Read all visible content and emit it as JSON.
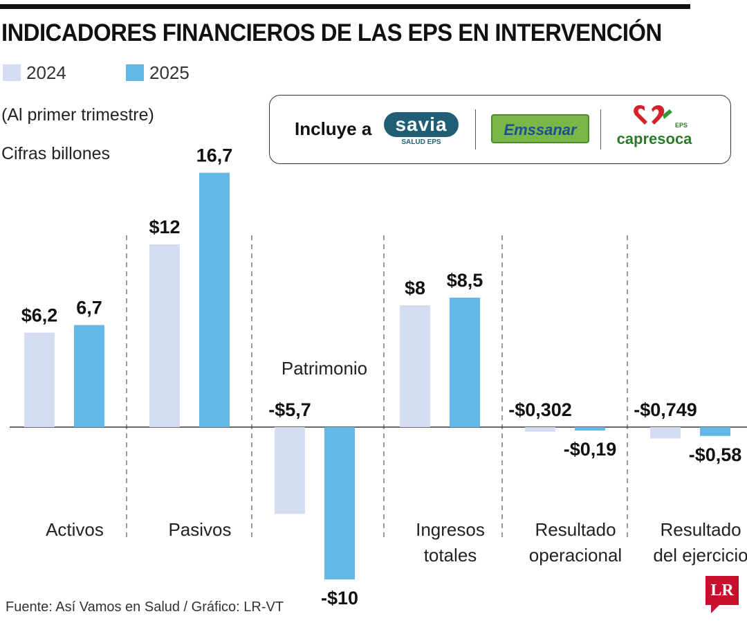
{
  "title": "INDICADORES FINANCIEROS DE LAS EPS EN INTERVENCIÓN",
  "legend": [
    {
      "label": "2024",
      "color": "#d3dcf0"
    },
    {
      "label": "2025",
      "color": "#62b9e8"
    }
  ],
  "subtitle_period": "(Al primer trimestre)",
  "subtitle_units": "Cifras billones",
  "logo_box": {
    "intro": "Incluye a",
    "logos": [
      {
        "name": "savia",
        "text": "savia",
        "tagline": "SALUD EPS"
      },
      {
        "name": "emssanar",
        "text": "Emssanar"
      },
      {
        "name": "capresoca",
        "text": "capresoca",
        "tagline": "EPS"
      }
    ]
  },
  "chart_data": {
    "type": "bar",
    "categories": [
      "Activos",
      "Pasivos",
      "Patrimonio",
      "Ingresos totales",
      "Resultado operacional",
      "Resultado del ejercicio"
    ],
    "category_label_lines": [
      [
        "Activos"
      ],
      [
        "Pasivos"
      ],
      [
        "Patrimonio"
      ],
      [
        "Ingresos",
        "totales"
      ],
      [
        "Resultado",
        "operacional"
      ],
      [
        "Resultado",
        "del ejercicio"
      ]
    ],
    "series": [
      {
        "name": "2024",
        "color": "#d3dcf0",
        "values": [
          6.2,
          12,
          -5.7,
          8,
          -0.302,
          -0.749
        ],
        "labels": [
          "$6,2",
          "$12",
          "-$5,7",
          "$8",
          "-$0,302",
          "-$0,749"
        ]
      },
      {
        "name": "2025",
        "color": "#62b9e8",
        "values": [
          6.7,
          16.7,
          -10,
          8.5,
          -0.19,
          -0.58
        ],
        "labels": [
          "6,7",
          "16,7",
          "-$10",
          "$8,5",
          "-$0,19",
          "-$0,58"
        ]
      }
    ],
    "ylim": [
      -10,
      16.7
    ],
    "grid": false,
    "legend_position": "top-left"
  },
  "source": "Fuente: Así Vamos en Salud / Gráfico: LR-VT",
  "brand_logo": "LR"
}
